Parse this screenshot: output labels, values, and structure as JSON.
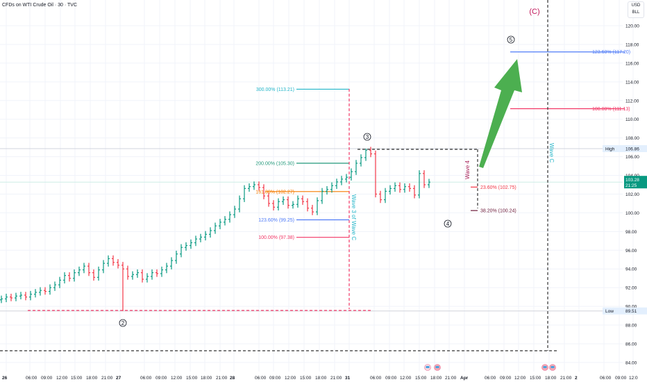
{
  "header": {
    "title": "CFDs on WTI Crude Oil · 30 · TVC",
    "currency": "USD",
    "unit": "BLL"
  },
  "chart_data": {
    "type": "ohlc",
    "interval": "30",
    "ylim": [
      83.5,
      121.5
    ],
    "y_ticks": [
      "84.00",
      "86.00",
      "88.00",
      "90.00",
      "92.00",
      "94.00",
      "96.00",
      "98.00",
      "100.00",
      "102.00",
      "104.00",
      "106.00",
      "108.00",
      "110.00",
      "112.00",
      "114.00",
      "116.00",
      "118.00",
      "120.00"
    ],
    "x_ticks": [
      "26",
      "06:00",
      "09:00",
      "12:00",
      "15:00",
      "18:00",
      "21:00",
      "27",
      "06:00",
      "09:00",
      "12:00",
      "15:00",
      "18:00",
      "21:00",
      "28",
      "06:00",
      "09:00",
      "12:00",
      "15:00",
      "18:00",
      "21:00",
      "31",
      "06:00",
      "09:00",
      "12:00",
      "15:00",
      "18:00",
      "21:00",
      "Apr",
      "06:00",
      "09:00",
      "12:00",
      "15:00",
      "18:00",
      "21:00",
      "2",
      "06:00",
      "09:00",
      "12:0"
    ],
    "closes": [
      90.8,
      91.0,
      90.9,
      91.1,
      91.2,
      91.0,
      91.3,
      91.5,
      91.7,
      91.6,
      92.0,
      92.3,
      92.8,
      93.3,
      93.0,
      93.6,
      93.9,
      94.3,
      93.6,
      93.1,
      93.9,
      94.6,
      95.1,
      94.7,
      94.4,
      94.0,
      93.2,
      93.4,
      93.6,
      92.9,
      93.2,
      93.6,
      93.5,
      93.9,
      94.3,
      94.9,
      95.6,
      96.3,
      96.5,
      96.8,
      97.2,
      97.4,
      97.7,
      98.1,
      98.6,
      99.0,
      99.3,
      99.8,
      100.4,
      101.5,
      102.6,
      102.8,
      103.0,
      102.7,
      101.8,
      101.0,
      100.6,
      101.2,
      101.4,
      100.8,
      100.9,
      101.5,
      101.2,
      100.5,
      100.1,
      101.3,
      102.3,
      102.5,
      102.9,
      103.3,
      103.6,
      103.8,
      104.4,
      105.3,
      105.9,
      106.7,
      106.3,
      102.0,
      101.4,
      102.3,
      102.6,
      102.9,
      102.5,
      102.8,
      102.6,
      101.9,
      104.2,
      103.0,
      103.28
    ],
    "high": {
      "label": "High",
      "value": "106.86"
    },
    "low": {
      "label": "Low",
      "value": "89.51"
    },
    "last": {
      "value": "103.28",
      "countdown": "21:25"
    },
    "colors": {
      "up": "#089981",
      "down": "#f23645",
      "last": "#089981",
      "arrow": "#4caf50"
    },
    "fib_levels": [
      {
        "label": "300.00% (113.21)",
        "value": 113.21,
        "color": "#22b5c8"
      },
      {
        "label": "200.00% (105.30)",
        "value": 105.3,
        "color": "#22997a"
      },
      {
        "label": "161.80% (102.27)",
        "value": 102.27,
        "color": "#f57c00"
      },
      {
        "label": "123.60% (99.25)",
        "value": 99.25,
        "color": "#4f7bf7"
      },
      {
        "label": "100.00% (97.38)",
        "value": 97.38,
        "color": "#f23665"
      },
      {
        "label": "23.60% (102.75)",
        "value": 102.75,
        "color": "#f23645"
      },
      {
        "label": "38.20% (100.24)",
        "value": 100.24,
        "color": "#6d1b3a"
      },
      {
        "label": "100.00% (111.13)",
        "value": 111.13,
        "color": "#f23665"
      },
      {
        "label": "123.60% (117.20)",
        "value": 117.2,
        "color": "#4f7bf7"
      }
    ],
    "annotations": {
      "wave_c_major": "(C)",
      "wave2": "2",
      "wave3": "3",
      "wave4": "4",
      "wave5": "5",
      "wave3_of_c": "Wave 3 of Wave C",
      "wave4_label": "Wave 4",
      "wave_c_label": "Wave C"
    }
  }
}
